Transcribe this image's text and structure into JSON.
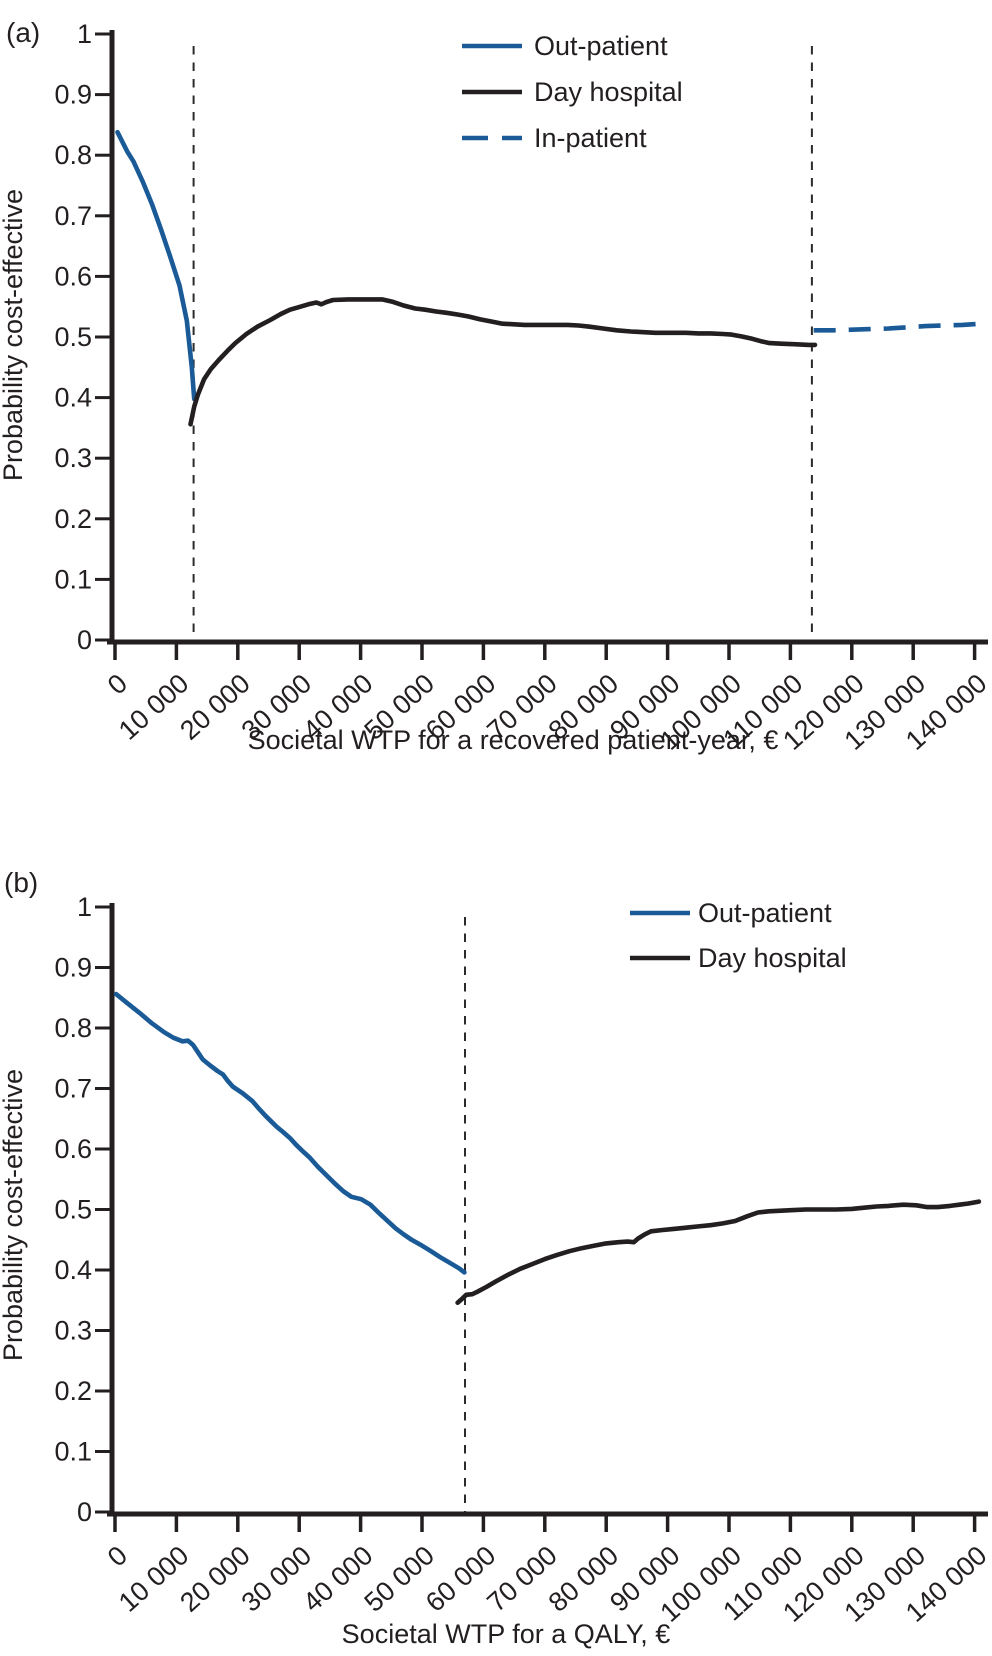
{
  "figure": {
    "panels": [
      {
        "letter": "(a)",
        "ylabel": "Probability cost-effective",
        "xlabel": "Societal WTP for a recovered patient-year, €"
      },
      {
        "letter": "(b)",
        "ylabel": "Probability cost-effective",
        "xlabel": "Societal WTP for a QALY, €"
      }
    ],
    "colors": {
      "out_patient_blue": "#1a5a97",
      "day_hospital_black": "#231f20",
      "in_patient_blue": "#1a5a97",
      "axis": "#231f20",
      "dashed_guide": "#2b2b2b",
      "background": "#ffffff"
    }
  },
  "chart_data": [
    {
      "type": "line",
      "panel": "(a)",
      "title": "",
      "xlabel": "Societal WTP for a recovered patient-year, €",
      "ylabel": "Probability cost-effective",
      "xlim": [
        0,
        140000
      ],
      "ylim": [
        0,
        1
      ],
      "grid": false,
      "legend_position": "top-right",
      "xtick_rotation": -45,
      "xticks": [
        0,
        10000,
        20000,
        30000,
        40000,
        50000,
        60000,
        70000,
        80000,
        90000,
        100000,
        110000,
        120000,
        130000,
        140000
      ],
      "xtick_labels": [
        "0",
        "10 000",
        "20 000",
        "30 000",
        "40 000",
        "50 000",
        "60 000",
        "70 000",
        "80 000",
        "90 000",
        "100 000",
        "110 000",
        "120 000",
        "130 000",
        "140 000"
      ],
      "yticks": [
        0,
        0.1,
        0.2,
        0.3,
        0.4,
        0.5,
        0.6,
        0.7,
        0.8,
        0.9,
        1
      ],
      "ytick_labels": [
        "0",
        "0.1",
        "0.2",
        "0.3",
        "0.4",
        "0.5",
        "0.6",
        "0.7",
        "0.8",
        "0.9",
        "1"
      ],
      "vlines": [
        12800,
        113500
      ],
      "series": [
        {
          "name": "Out-patient",
          "color": "#1a5a97",
          "style": "solid",
          "points": [
            [
              400,
              0.838
            ],
            [
              2000,
              0.806
            ],
            [
              3000,
              0.79
            ],
            [
              4500,
              0.757
            ],
            [
              6000,
              0.72
            ],
            [
              7500,
              0.677
            ],
            [
              9000,
              0.632
            ],
            [
              10500,
              0.585
            ],
            [
              11700,
              0.527
            ],
            [
              12500,
              0.45
            ],
            [
              12900,
              0.398
            ]
          ]
        },
        {
          "name": "Day hospital",
          "color": "#231f20",
          "style": "solid",
          "points": [
            [
              12300,
              0.356
            ],
            [
              12900,
              0.385
            ],
            [
              13500,
              0.405
            ],
            [
              14500,
              0.43
            ],
            [
              15600,
              0.447
            ],
            [
              16900,
              0.462
            ],
            [
              18300,
              0.477
            ],
            [
              19600,
              0.49
            ],
            [
              21400,
              0.505
            ],
            [
              23200,
              0.517
            ],
            [
              25300,
              0.528
            ],
            [
              27000,
              0.538
            ],
            [
              28500,
              0.545
            ],
            [
              30200,
              0.55
            ],
            [
              31500,
              0.554
            ],
            [
              32800,
              0.557
            ],
            [
              33600,
              0.554
            ],
            [
              34500,
              0.558
            ],
            [
              35500,
              0.561
            ],
            [
              38000,
              0.562
            ],
            [
              40000,
              0.562
            ],
            [
              43500,
              0.562
            ],
            [
              45300,
              0.558
            ],
            [
              47000,
              0.552
            ],
            [
              48900,
              0.547
            ],
            [
              50500,
              0.545
            ],
            [
              52300,
              0.542
            ],
            [
              54000,
              0.54
            ],
            [
              55900,
              0.537
            ],
            [
              57500,
              0.534
            ],
            [
              59500,
              0.529
            ],
            [
              61500,
              0.525
            ],
            [
              63100,
              0.522
            ],
            [
              65000,
              0.521
            ],
            [
              66700,
              0.52
            ],
            [
              69000,
              0.52
            ],
            [
              71500,
              0.52
            ],
            [
              73700,
              0.52
            ],
            [
              75500,
              0.519
            ],
            [
              77300,
              0.517
            ],
            [
              79500,
              0.514
            ],
            [
              81700,
              0.511
            ],
            [
              84000,
              0.509
            ],
            [
              86100,
              0.508
            ],
            [
              88000,
              0.507
            ],
            [
              90600,
              0.507
            ],
            [
              93000,
              0.507
            ],
            [
              95000,
              0.506
            ],
            [
              97000,
              0.506
            ],
            [
              99000,
              0.505
            ],
            [
              100400,
              0.504
            ],
            [
              102000,
              0.501
            ],
            [
              103800,
              0.497
            ],
            [
              105200,
              0.493
            ],
            [
              106600,
              0.49
            ],
            [
              108500,
              0.489
            ],
            [
              111000,
              0.488
            ],
            [
              113000,
              0.487
            ],
            [
              114000,
              0.487
            ]
          ]
        },
        {
          "name": "In-patient",
          "color": "#1a5a97",
          "style": "dashed",
          "points": [
            [
              113800,
              0.511
            ],
            [
              117000,
              0.511
            ],
            [
              120000,
              0.512
            ],
            [
              123000,
              0.513
            ],
            [
              126000,
              0.514
            ],
            [
              129000,
              0.516
            ],
            [
              132000,
              0.518
            ],
            [
              135000,
              0.519
            ],
            [
              138000,
              0.52
            ],
            [
              141000,
              0.522
            ]
          ]
        }
      ]
    },
    {
      "type": "line",
      "panel": "(b)",
      "title": "",
      "xlabel": "Societal WTP for a QALY, €",
      "ylabel": "Probability cost-effective",
      "xlim": [
        0,
        140000
      ],
      "ylim": [
        0,
        1
      ],
      "grid": false,
      "legend_position": "top-right",
      "xtick_rotation": -45,
      "xticks": [
        0,
        10000,
        20000,
        30000,
        40000,
        50000,
        60000,
        70000,
        80000,
        90000,
        100000,
        110000,
        120000,
        130000,
        140000
      ],
      "xtick_labels": [
        "0",
        "10 000",
        "20 000",
        "30 000",
        "40 000",
        "50 000",
        "60 000",
        "70 000",
        "80 000",
        "90 000",
        "100 000",
        "110 000",
        "120 000",
        "130 000",
        "140 000"
      ],
      "yticks": [
        0,
        0.1,
        0.2,
        0.3,
        0.4,
        0.5,
        0.6,
        0.7,
        0.8,
        0.9,
        1
      ],
      "ytick_labels": [
        "0",
        "0.1",
        "0.2",
        "0.3",
        "0.4",
        "0.5",
        "0.6",
        "0.7",
        "0.8",
        "0.9",
        "1"
      ],
      "vlines": [
        57000
      ],
      "series": [
        {
          "name": "Out-patient",
          "color": "#1a5a97",
          "style": "solid",
          "points": [
            [
              200,
              0.856
            ],
            [
              2000,
              0.841
            ],
            [
              4000,
              0.825
            ],
            [
              6000,
              0.808
            ],
            [
              8000,
              0.793
            ],
            [
              9500,
              0.784
            ],
            [
              11000,
              0.778
            ],
            [
              11900,
              0.779
            ],
            [
              12700,
              0.772
            ],
            [
              13500,
              0.76
            ],
            [
              14300,
              0.748
            ],
            [
              15500,
              0.738
            ],
            [
              16700,
              0.729
            ],
            [
              17600,
              0.723
            ],
            [
              18400,
              0.712
            ],
            [
              19200,
              0.703
            ],
            [
              20800,
              0.692
            ],
            [
              22400,
              0.679
            ],
            [
              23500,
              0.666
            ],
            [
              24500,
              0.655
            ],
            [
              25500,
              0.645
            ],
            [
              26300,
              0.637
            ],
            [
              27400,
              0.628
            ],
            [
              28500,
              0.618
            ],
            [
              29500,
              0.607
            ],
            [
              30500,
              0.597
            ],
            [
              31700,
              0.586
            ],
            [
              33000,
              0.571
            ],
            [
              34400,
              0.557
            ],
            [
              35800,
              0.543
            ],
            [
              37200,
              0.53
            ],
            [
              38500,
              0.521
            ],
            [
              40100,
              0.517
            ],
            [
              41600,
              0.508
            ],
            [
              43000,
              0.494
            ],
            [
              44300,
              0.482
            ],
            [
              45700,
              0.469
            ],
            [
              47000,
              0.459
            ],
            [
              48300,
              0.45
            ],
            [
              49700,
              0.442
            ],
            [
              51300,
              0.432
            ],
            [
              53000,
              0.421
            ],
            [
              54500,
              0.412
            ],
            [
              56000,
              0.403
            ],
            [
              56900,
              0.396
            ]
          ]
        },
        {
          "name": "Day hospital",
          "color": "#231f20",
          "style": "solid",
          "points": [
            [
              55800,
              0.346
            ],
            [
              56500,
              0.352
            ],
            [
              57200,
              0.359
            ],
            [
              58200,
              0.36
            ],
            [
              59000,
              0.364
            ],
            [
              60500,
              0.372
            ],
            [
              62000,
              0.381
            ],
            [
              64000,
              0.392
            ],
            [
              66000,
              0.402
            ],
            [
              68000,
              0.41
            ],
            [
              70000,
              0.418
            ],
            [
              72000,
              0.425
            ],
            [
              74000,
              0.431
            ],
            [
              76000,
              0.436
            ],
            [
              78000,
              0.44
            ],
            [
              80000,
              0.444
            ],
            [
              82000,
              0.446
            ],
            [
              83500,
              0.447
            ],
            [
              84500,
              0.446
            ],
            [
              85200,
              0.452
            ],
            [
              86300,
              0.459
            ],
            [
              87300,
              0.464
            ],
            [
              89000,
              0.466
            ],
            [
              91000,
              0.468
            ],
            [
              93000,
              0.47
            ],
            [
              95000,
              0.472
            ],
            [
              97000,
              0.474
            ],
            [
              99000,
              0.477
            ],
            [
              101000,
              0.481
            ],
            [
              103000,
              0.489
            ],
            [
              104700,
              0.495
            ],
            [
              106500,
              0.497
            ],
            [
              108500,
              0.498
            ],
            [
              110500,
              0.499
            ],
            [
              112500,
              0.5
            ],
            [
              115000,
              0.5
            ],
            [
              117500,
              0.5
            ],
            [
              120000,
              0.501
            ],
            [
              122000,
              0.503
            ],
            [
              124000,
              0.505
            ],
            [
              126000,
              0.506
            ],
            [
              128400,
              0.508
            ],
            [
              130500,
              0.507
            ],
            [
              132300,
              0.504
            ],
            [
              134000,
              0.504
            ],
            [
              136000,
              0.506
            ],
            [
              137500,
              0.508
            ],
            [
              139000,
              0.51
            ],
            [
              140700,
              0.513
            ]
          ]
        }
      ]
    }
  ]
}
